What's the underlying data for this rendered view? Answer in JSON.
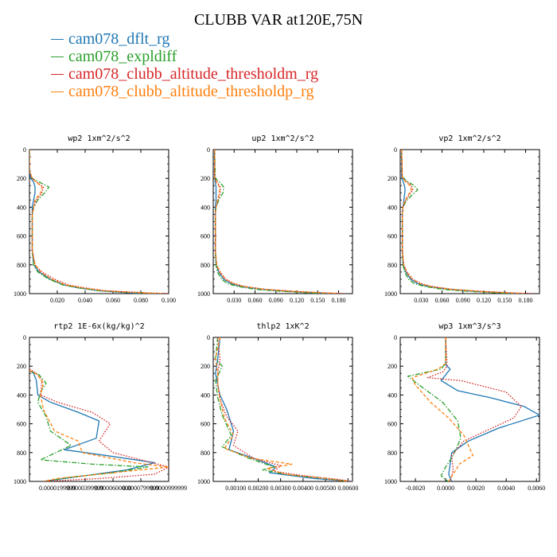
{
  "title": "CLUBB VAR at120E,75N",
  "legend": [
    {
      "label": "cam078_dflt_rg",
      "color": "#1f77b4",
      "dash": "solid"
    },
    {
      "label": "cam078_expldiff",
      "color": "#2ca02c",
      "dash": "dashdot"
    },
    {
      "label": "cam078_clubb_altitude_thresholdm_rg",
      "color": "#d62728",
      "dash": "dotted"
    },
    {
      "label": "cam078_clubb_altitude_thresholdp_rg",
      "color": "#ff7f0e",
      "dash": "dashed"
    }
  ],
  "chart_data": [
    {
      "type": "line",
      "title": "wp2  1xm^2/s^2",
      "xlim": [
        0,
        0.1
      ],
      "xticks": [
        0.02,
        0.04,
        0.06,
        0.08,
        0.1
      ],
      "xticklabels": [
        "0.020",
        "0.040",
        "0.060",
        "0.080",
        "0.100"
      ],
      "ylim": [
        1000,
        0
      ],
      "yticks": [
        0,
        200,
        400,
        600,
        800,
        1000
      ],
      "yticklabels": [
        "0",
        "200",
        "400",
        "600",
        "800",
        "1000"
      ],
      "y": [
        0,
        150,
        200,
        225,
        260,
        300,
        350,
        400,
        450,
        500,
        600,
        700,
        800,
        850,
        900,
        940,
        960,
        980,
        990,
        1000
      ],
      "series": [
        {
          "name": "cam078_dflt_rg",
          "x": [
            0,
            0,
            0.001,
            0.003,
            0.004,
            0.004,
            0.003,
            0.002,
            0.002,
            0.002,
            0.002,
            0.002,
            0.003,
            0.007,
            0.015,
            0.025,
            0.035,
            0.05,
            0.065,
            0.08
          ]
        },
        {
          "name": "cam078_expldiff",
          "x": [
            0,
            0,
            0.002,
            0.007,
            0.014,
            0.011,
            0.006,
            0.003,
            0.002,
            0.002,
            0.002,
            0.002,
            0.003,
            0.006,
            0.014,
            0.024,
            0.035,
            0.05,
            0.07,
            0.09
          ]
        },
        {
          "name": "cam078_clubb_altitude_thresholdm_rg",
          "x": [
            0,
            0,
            0.002,
            0.005,
            0.01,
            0.009,
            0.005,
            0.003,
            0.002,
            0.002,
            0.002,
            0.002,
            0.004,
            0.009,
            0.018,
            0.028,
            0.04,
            0.055,
            0.075,
            0.1
          ]
        },
        {
          "name": "cam078_clubb_altitude_thresholdp_rg",
          "x": [
            0,
            0,
            0.002,
            0.005,
            0.009,
            0.008,
            0.004,
            0.003,
            0.002,
            0.002,
            0.002,
            0.002,
            0.004,
            0.008,
            0.016,
            0.026,
            0.038,
            0.053,
            0.07,
            0.095
          ]
        }
      ]
    },
    {
      "type": "line",
      "title": "up2  1xm^2/s^2",
      "xlim": [
        0,
        0.2
      ],
      "xticks": [
        0.03,
        0.06,
        0.09,
        0.12,
        0.15,
        0.18
      ],
      "xticklabels": [
        "0.030",
        "0.060",
        "0.090",
        "0.120",
        "0.150",
        "0.180"
      ],
      "ylim": [
        1000,
        0
      ],
      "yticks": [
        0,
        200,
        400,
        600,
        800,
        1000
      ],
      "yticklabels": [
        "0",
        "200",
        "400",
        "600",
        "800",
        "1000"
      ],
      "y": [
        0,
        200,
        230,
        260,
        300,
        350,
        400,
        450,
        500,
        600,
        700,
        800,
        850,
        900,
        930,
        950,
        970,
        985,
        1000
      ],
      "series": [
        {
          "name": "cam078_dflt_rg",
          "x": [
            0.002,
            0.002,
            0.003,
            0.004,
            0.004,
            0.004,
            0.003,
            0.003,
            0.003,
            0.003,
            0.003,
            0.004,
            0.008,
            0.015,
            0.025,
            0.04,
            0.07,
            0.11,
            0.17
          ]
        },
        {
          "name": "cam078_expldiff",
          "x": [
            0.002,
            0.003,
            0.01,
            0.015,
            0.014,
            0.008,
            0.004,
            0.003,
            0.003,
            0.003,
            0.003,
            0.004,
            0.006,
            0.012,
            0.02,
            0.035,
            0.06,
            0.1,
            0.16
          ]
        },
        {
          "name": "cam078_clubb_altitude_thresholdm_rg",
          "x": [
            0.002,
            0.002,
            0.006,
            0.01,
            0.01,
            0.007,
            0.004,
            0.003,
            0.003,
            0.003,
            0.003,
            0.005,
            0.01,
            0.018,
            0.03,
            0.045,
            0.075,
            0.12,
            0.19
          ]
        },
        {
          "name": "cam078_clubb_altitude_thresholdp_rg",
          "x": [
            0.002,
            0.002,
            0.005,
            0.009,
            0.009,
            0.006,
            0.004,
            0.003,
            0.003,
            0.003,
            0.003,
            0.005,
            0.009,
            0.017,
            0.028,
            0.043,
            0.072,
            0.115,
            0.18
          ]
        }
      ]
    },
    {
      "type": "line",
      "title": "vp2  1xm^2/s^2",
      "xlim": [
        0,
        0.2
      ],
      "xticks": [
        0.03,
        0.06,
        0.09,
        0.12,
        0.15,
        0.18
      ],
      "xticklabels": [
        "0.030",
        "0.060",
        "0.090",
        "0.120",
        "0.150",
        "0.180"
      ],
      "ylim": [
        1000,
        0
      ],
      "yticks": [
        0,
        200,
        400,
        600,
        800,
        1000
      ],
      "yticklabels": [
        "0",
        "200",
        "400",
        "600",
        "800",
        "1000"
      ],
      "y": [
        0,
        190,
        220,
        250,
        280,
        320,
        360,
        400,
        450,
        500,
        600,
        700,
        800,
        850,
        900,
        930,
        950,
        970,
        985,
        1000
      ],
      "series": [
        {
          "name": "cam078_dflt_rg",
          "x": [
            0.002,
            0.002,
            0.004,
            0.006,
            0.007,
            0.006,
            0.005,
            0.004,
            0.003,
            0.003,
            0.003,
            0.003,
            0.004,
            0.008,
            0.015,
            0.025,
            0.04,
            0.07,
            0.11,
            0.17
          ]
        },
        {
          "name": "cam078_expldiff",
          "x": [
            0.002,
            0.003,
            0.01,
            0.02,
            0.025,
            0.016,
            0.008,
            0.004,
            0.003,
            0.003,
            0.003,
            0.003,
            0.004,
            0.006,
            0.012,
            0.02,
            0.035,
            0.06,
            0.1,
            0.16
          ]
        },
        {
          "name": "cam078_clubb_altitude_thresholdm_rg",
          "x": [
            0.002,
            0.003,
            0.008,
            0.016,
            0.018,
            0.012,
            0.007,
            0.004,
            0.003,
            0.003,
            0.003,
            0.003,
            0.005,
            0.01,
            0.018,
            0.03,
            0.045,
            0.075,
            0.12,
            0.19
          ]
        },
        {
          "name": "cam078_clubb_altitude_thresholdp_rg",
          "x": [
            0.002,
            0.003,
            0.007,
            0.014,
            0.016,
            0.011,
            0.006,
            0.004,
            0.003,
            0.003,
            0.003,
            0.003,
            0.005,
            0.009,
            0.017,
            0.028,
            0.043,
            0.072,
            0.115,
            0.18
          ]
        }
      ]
    },
    {
      "type": "line",
      "title": "rtp2  1E-6x(kg/kg)^2",
      "xlim": [
        0,
        0.0001
      ],
      "xticks": [
        2e-05,
        4e-05,
        6e-05,
        8e-05,
        0.0001
      ],
      "xticklabels": [
        "0.0000199999",
        "0.0000399999",
        "0.0000600000",
        "0.0000799999",
        "0.0000999999"
      ],
      "ylim": [
        1000,
        0
      ],
      "yticks": [
        0,
        200,
        400,
        600,
        800,
        1000
      ],
      "yticklabels": [
        "0",
        "200",
        "400",
        "600",
        "800",
        "1000"
      ],
      "series": [
        {
          "name": "cam078_dflt_rg",
          "x": [
            0,
            3e-06,
            5e-06,
            6e-06,
            1.5e-05,
            3.5e-05,
            5e-05,
            4.8e-05,
            2.5e-05,
            5.5e-05,
            9e-05,
            7e-05,
            4e-05,
            1e-05
          ],
          "y": [
            230,
            250,
            300,
            400,
            450,
            520,
            580,
            700,
            780,
            820,
            870,
            920,
            960,
            1000
          ]
        },
        {
          "name": "cam078_expldiff",
          "x": [
            0,
            7e-06,
            1.2e-05,
            8e-06,
            6e-06,
            1.2e-05,
            1.5e-05,
            3e-05,
            8e-06,
            4.5e-05,
            8.5e-05,
            6e-05,
            3e-05,
            1e-05
          ],
          "y": [
            230,
            260,
            320,
            380,
            450,
            550,
            650,
            750,
            850,
            880,
            900,
            940,
            970,
            1000
          ]
        },
        {
          "name": "cam078_clubb_altitude_thresholdm_rg",
          "x": [
            0,
            5e-06,
            9e-06,
            8e-06,
            2e-05,
            4.5e-05,
            5.8e-05,
            5e-05,
            6e-05,
            8.8e-05,
            0.0001,
            9e-05,
            5e-05,
            1e-05
          ],
          "y": [
            220,
            250,
            300,
            400,
            450,
            520,
            600,
            720,
            800,
            870,
            900,
            950,
            980,
            1000
          ]
        },
        {
          "name": "cam078_clubb_altitude_thresholdp_rg",
          "x": [
            0,
            6e-06,
            1e-05,
            8e-06,
            1e-05,
            1.8e-05,
            3.5e-05,
            3.8e-05,
            7.5e-05,
            0.0001,
            8e-05,
            5e-05,
            2e-05,
            1e-05
          ],
          "y": [
            230,
            260,
            320,
            400,
            500,
            650,
            720,
            800,
            870,
            900,
            920,
            950,
            980,
            1000
          ]
        }
      ]
    },
    {
      "type": "line",
      "title": "thlp2  1xK^2",
      "xlim": [
        0,
        0.0062
      ],
      "xticks": [
        0.001,
        0.002,
        0.003,
        0.004,
        0.005,
        0.006
      ],
      "xticklabels": [
        "0.00100",
        "0.00200",
        "0.00300",
        "0.00400",
        "0.00500",
        "0.00600"
      ],
      "ylim": [
        1000,
        0
      ],
      "yticks": [
        0,
        200,
        400,
        600,
        800,
        1000
      ],
      "yticklabels": [
        "0",
        "200",
        "400",
        "600",
        "800",
        "1000"
      ],
      "series": [
        {
          "name": "cam078_dflt_rg",
          "x": [
            0.0003,
            0.0002,
            0.0001,
            0.0002,
            0.0003,
            0.0006,
            0.0009,
            0.0008,
            0.0007,
            0.0018,
            0.0028,
            0.0025,
            0.0045,
            0.0062
          ],
          "y": [
            0,
            150,
            250,
            330,
            400,
            500,
            650,
            720,
            780,
            840,
            900,
            940,
            980,
            1000
          ]
        },
        {
          "name": "cam078_expldiff",
          "x": [
            0.0002,
            0.0001,
            0.0004,
            0.0001,
            0.0002,
            0.0004,
            0.0008,
            0.0004,
            0.0016,
            0.0027,
            0.0022,
            0.0032,
            0.005,
            0.0061
          ],
          "y": [
            0,
            150,
            200,
            300,
            420,
            540,
            680,
            760,
            840,
            900,
            920,
            950,
            980,
            1000
          ]
        },
        {
          "name": "cam078_clubb_altitude_thresholdm_rg",
          "x": [
            0.0002,
            0.0003,
            0.0002,
            0.0002,
            0.0003,
            0.0006,
            0.0011,
            0.0009,
            0.0018,
            0.003,
            0.0027,
            0.004,
            0.0055,
            0.0062
          ],
          "y": [
            0,
            150,
            250,
            330,
            430,
            550,
            650,
            750,
            840,
            890,
            930,
            960,
            985,
            1000
          ]
        },
        {
          "name": "cam078_clubb_altitude_thresholdp_rg",
          "x": [
            0.0003,
            0.0001,
            0.0002,
            0.0002,
            0.0003,
            0.0005,
            0.0009,
            0.0005,
            0.0017,
            0.0035,
            0.0024,
            0.0032,
            0.005,
            0.006
          ],
          "y": [
            0,
            150,
            250,
            320,
            430,
            560,
            680,
            770,
            840,
            880,
            910,
            950,
            980,
            1000
          ]
        }
      ]
    },
    {
      "type": "line",
      "title": "wp3  1xm^3/s^3",
      "xlim": [
        -0.003,
        0.0062
      ],
      "xticks": [
        -0.002,
        0,
        0.002,
        0.004,
        0.006
      ],
      "xticklabels": [
        "-0.0020",
        "0.0000",
        "0.0020",
        "0.0040",
        "0.0060"
      ],
      "ylim": [
        1000,
        0
      ],
      "yticks": [
        0,
        200,
        400,
        600,
        800,
        1000
      ],
      "yticklabels": [
        "0",
        "200",
        "400",
        "600",
        "800",
        "1000"
      ],
      "series": [
        {
          "name": "cam078_dflt_rg",
          "x": [
            0,
            0,
            0.0003,
            -0.0003,
            0.0008,
            0.003,
            0.0052,
            0.0062,
            0.0035,
            0.0015,
            0.0004,
            0.0003,
            0.0002,
            0.0004
          ],
          "y": [
            0,
            190,
            220,
            300,
            370,
            420,
            480,
            540,
            630,
            720,
            800,
            880,
            950,
            1000
          ]
        },
        {
          "name": "cam078_expldiff",
          "x": [
            0,
            0,
            -0.0003,
            -0.0025,
            -0.0015,
            -0.0002,
            0.0008,
            0.001,
            0.0005,
            0,
            -0.0003,
            0,
            0.0002
          ],
          "y": [
            0,
            180,
            220,
            270,
            350,
            450,
            580,
            700,
            820,
            900,
            960,
            990,
            1000
          ]
        },
        {
          "name": "cam078_clubb_altitude_thresholdm_rg",
          "x": [
            0,
            0.0001,
            -0.0002,
            -0.0012,
            0.001,
            0.004,
            0.005,
            0.0045,
            0.0012,
            0.0004,
            0.0005,
            0.0003
          ],
          "y": [
            0,
            200,
            240,
            280,
            300,
            380,
            480,
            560,
            720,
            820,
            920,
            1000
          ]
        },
        {
          "name": "cam078_clubb_altitude_thresholdp_rg",
          "x": [
            0,
            0,
            -0.0005,
            -0.0022,
            -0.002,
            -0.001,
            0.0002,
            0.0012,
            0.0018,
            0.0009,
            0.0005,
            0.0002
          ],
          "y": [
            0,
            180,
            220,
            280,
            330,
            450,
            560,
            680,
            820,
            880,
            950,
            1000
          ]
        }
      ]
    }
  ]
}
